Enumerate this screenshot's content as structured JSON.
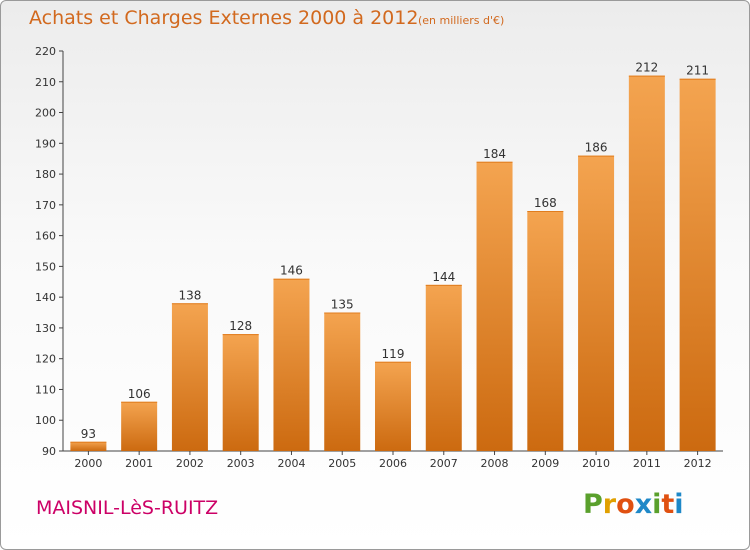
{
  "header": {
    "title": "Achats et Charges Externes 2000 à 2012",
    "subtitle": "(en milliers d'€)"
  },
  "footer": {
    "commune": "MAISNIL-LèS-RUITZ",
    "brand": [
      "P",
      "r",
      "o",
      "x",
      "i",
      "t",
      "i"
    ]
  },
  "colors": {
    "title": "#d2691e",
    "commune": "#cc0066",
    "bar_light": "#f4a450",
    "bar_dark": "#cc6a10",
    "brand_letters": [
      "#5aa02c",
      "#e0a000",
      "#e05010",
      "#1e88c8",
      "#5aa02c",
      "#e05010",
      "#1e88c8"
    ]
  },
  "chart_data": {
    "type": "bar",
    "categories": [
      "2000",
      "2001",
      "2002",
      "2003",
      "2004",
      "2005",
      "2006",
      "2007",
      "2008",
      "2009",
      "2010",
      "2011",
      "2012"
    ],
    "values": [
      93,
      106,
      138,
      128,
      146,
      135,
      119,
      144,
      184,
      168,
      186,
      212,
      211
    ],
    "ylim": [
      90,
      220
    ],
    "yticks": [
      90,
      100,
      110,
      120,
      130,
      140,
      150,
      160,
      170,
      180,
      190,
      200,
      210,
      220
    ],
    "grid": false,
    "legend": "none"
  }
}
